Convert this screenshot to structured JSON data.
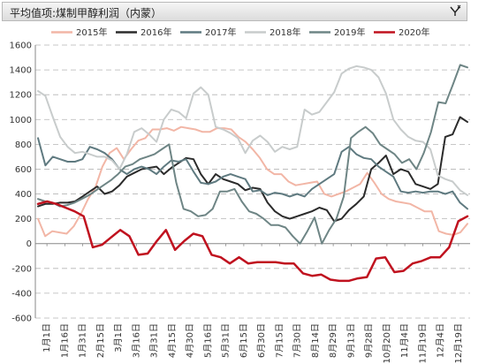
{
  "header": {
    "title": "平均值项:煤制甲醇利润（内蒙）"
  },
  "icons": {
    "filter": "filter-dropdown-icon"
  },
  "chart_data": {
    "type": "line",
    "title": "",
    "xlabel": "",
    "ylabel": "",
    "ylim": [
      -600,
      1600
    ],
    "yticks": [
      -600,
      -400,
      -200,
      0,
      200,
      400,
      600,
      800,
      1000,
      1200,
      1400,
      1600
    ],
    "grid": true,
    "legend_position": "top",
    "x_tick_labels": [
      "1月1日",
      "1月16日",
      "1月31日",
      "2月15日",
      "3月1日",
      "3月16日",
      "3月31日",
      "4月15日",
      "4月30日",
      "5月16日",
      "5月31日",
      "6月15日",
      "6月30日",
      "7月15日",
      "7月30日",
      "8月14日",
      "8月29日",
      "9月13日",
      "9月28日",
      "10月20日",
      "11月4日",
      "11月19日",
      "12月4日",
      "12月19日"
    ],
    "series": [
      {
        "name": "2015年",
        "color": "#f2b6a6",
        "width": 2,
        "values": [
          200,
          60,
          100,
          90,
          80,
          140,
          240,
          360,
          450,
          620,
          730,
          770,
          680,
          760,
          830,
          850,
          920,
          920,
          930,
          910,
          940,
          930,
          920,
          900,
          900,
          930,
          930,
          920,
          860,
          820,
          760,
          690,
          600,
          560,
          560,
          500,
          470,
          480,
          490,
          500,
          400,
          380,
          400,
          420,
          450,
          480,
          570,
          490,
          400,
          360,
          340,
          330,
          320,
          290,
          260,
          260,
          100,
          80,
          70,
          90,
          160
        ]
      },
      {
        "name": "2016年",
        "color": "#2b2b2b",
        "width": 2,
        "values": [
          300,
          320,
          320,
          330,
          330,
          340,
          380,
          420,
          460,
          400,
          420,
          470,
          540,
          570,
          600,
          610,
          620,
          560,
          610,
          650,
          690,
          680,
          560,
          480,
          560,
          520,
          500,
          480,
          430,
          450,
          440,
          330,
          260,
          220,
          200,
          220,
          240,
          260,
          290,
          270,
          180,
          200,
          270,
          320,
          380,
          600,
          650,
          710,
          560,
          600,
          580,
          480,
          460,
          440,
          480,
          860,
          880,
          1020,
          980
        ]
      },
      {
        "name": "2017年",
        "color": "#5f7a80",
        "width": 2,
        "values": [
          850,
          630,
          700,
          680,
          660,
          660,
          680,
          780,
          760,
          730,
          680,
          600,
          560,
          600,
          620,
          600,
          560,
          620,
          670,
          660,
          680,
          580,
          490,
          480,
          500,
          540,
          560,
          540,
          520,
          420,
          430,
          390,
          410,
          400,
          380,
          400,
          380,
          440,
          480,
          520,
          560,
          740,
          780,
          720,
          690,
          680,
          620,
          580,
          540,
          420,
          410,
          420,
          410,
          420,
          420,
          400,
          420,
          330,
          280
        ]
      },
      {
        "name": "2018年",
        "color": "#c8cccc",
        "width": 2,
        "values": [
          1230,
          1190,
          1020,
          860,
          780,
          730,
          740,
          720,
          700,
          700,
          670,
          600,
          720,
          900,
          930,
          880,
          820,
          1000,
          1080,
          1060,
          1010,
          1210,
          1260,
          1200,
          940,
          920,
          890,
          850,
          730,
          830,
          870,
          820,
          740,
          780,
          760,
          780,
          1080,
          1040,
          1060,
          1140,
          1220,
          1370,
          1410,
          1430,
          1420,
          1400,
          1340,
          1210,
          1000,
          920,
          860,
          830,
          820,
          760,
          550,
          520,
          500,
          430,
          390
        ]
      },
      {
        "name": "2019年",
        "color": "#6e8585",
        "width": 2,
        "values": [
          360,
          340,
          330,
          300,
          310,
          330,
          360,
          390,
          430,
          470,
          510,
          560,
          620,
          640,
          680,
          700,
          720,
          760,
          800,
          490,
          280,
          260,
          220,
          230,
          280,
          420,
          420,
          440,
          340,
          260,
          240,
          200,
          150,
          150,
          130,
          60,
          0,
          100,
          210,
          0,
          110,
          200,
          380,
          850,
          900,
          940,
          890,
          800,
          760,
          720,
          650,
          680,
          600,
          730,
          900,
          1140,
          1130,
          1280,
          1440,
          1420
        ]
      },
      {
        "name": "2020年",
        "color": "#c0121f",
        "width": 2.5,
        "values": [
          320,
          340,
          320,
          290,
          260,
          220,
          -30,
          -10,
          50,
          110,
          60,
          -90,
          -80,
          20,
          110,
          -50,
          20,
          80,
          60,
          -90,
          -110,
          -160,
          -110,
          -160,
          -150,
          -150,
          -150,
          -160,
          -160,
          -240,
          -260,
          -250,
          -290,
          -300,
          -300,
          -280,
          -270,
          -120,
          -110,
          -230,
          -220,
          -160,
          -140,
          -110,
          -110,
          -30,
          180,
          220
        ]
      }
    ]
  }
}
